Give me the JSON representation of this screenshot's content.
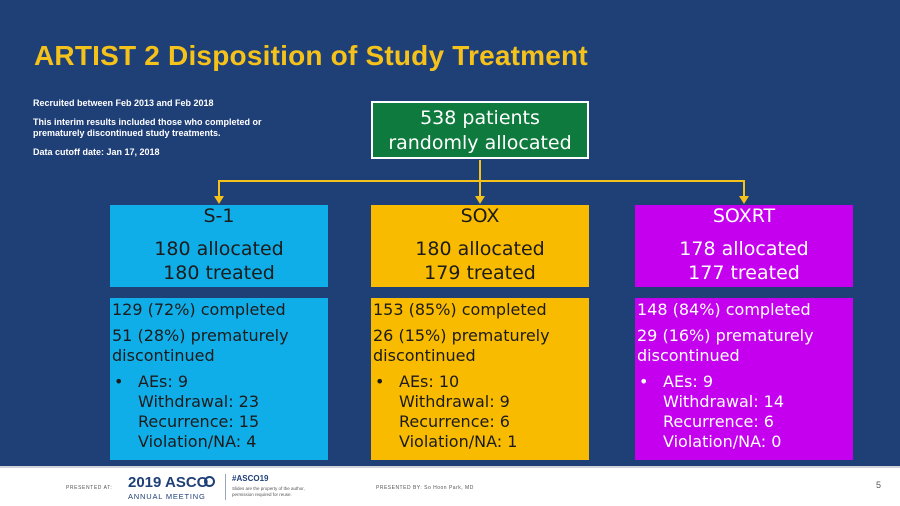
{
  "slide": {
    "title": "ARTIST 2 Disposition of Study Treatment",
    "notes": [
      "Recruited between Feb 2013 and Feb 2018",
      "This interim results included those who completed or prematurely discontinued study treatments.",
      "Data cutoff date: Jan 17, 2018"
    ],
    "top_box": {
      "line1": "538 patients",
      "line2": "randomly allocated"
    },
    "arms": [
      {
        "name": "S-1",
        "allocated": "180 allocated",
        "treated": "180 treated",
        "completed": "129 (72%) completed",
        "discontinued_line1": "51 (28%) prematurely",
        "discontinued_line2": "discontinued",
        "aes": "AEs: 9",
        "withdrawal": "Withdrawal: 23",
        "recurrence": "Recurrence: 15",
        "violation": "Violation/NA: 4"
      },
      {
        "name": "SOX",
        "allocated": "180 allocated",
        "treated": "179 treated",
        "completed": "153 (85%) completed",
        "discontinued_line1": "26 (15%) prematurely",
        "discontinued_line2": "discontinued",
        "aes": "AEs: 10",
        "withdrawal": "Withdrawal: 9",
        "recurrence": "Recurrence: 6",
        "violation": "Violation/NA: 1"
      },
      {
        "name": "SOXRT",
        "allocated": "178 allocated",
        "treated": "177 treated",
        "completed": "148 (84%) completed",
        "discontinued_line1": "29 (16%) prematurely",
        "discontinued_line2": "discontinued",
        "aes": "AEs: 9",
        "withdrawal": "Withdrawal: 14",
        "recurrence": "Recurrence: 6",
        "violation": "Violation/NA: 0"
      }
    ],
    "bullet": "•",
    "footer": {
      "presented_at": "PRESENTED AT:",
      "asco_year": "2019",
      "asco_name": "ASCO",
      "asco_sub": "ANNUAL MEETING",
      "hashtag": "#ASCO19",
      "hashnote_line1": "Slides are the property of the author,",
      "hashnote_line2": "permission required for reuse.",
      "presented_by": "PRESENTED BY: So Hoon Park, MD",
      "page": "5"
    },
    "colors": {
      "background": "#1f3f77",
      "title": "#f5c21b",
      "green": "#0f7a3e",
      "blue": "#10aee8",
      "gold": "#f9bb00",
      "purple": "#c400ee"
    }
  }
}
